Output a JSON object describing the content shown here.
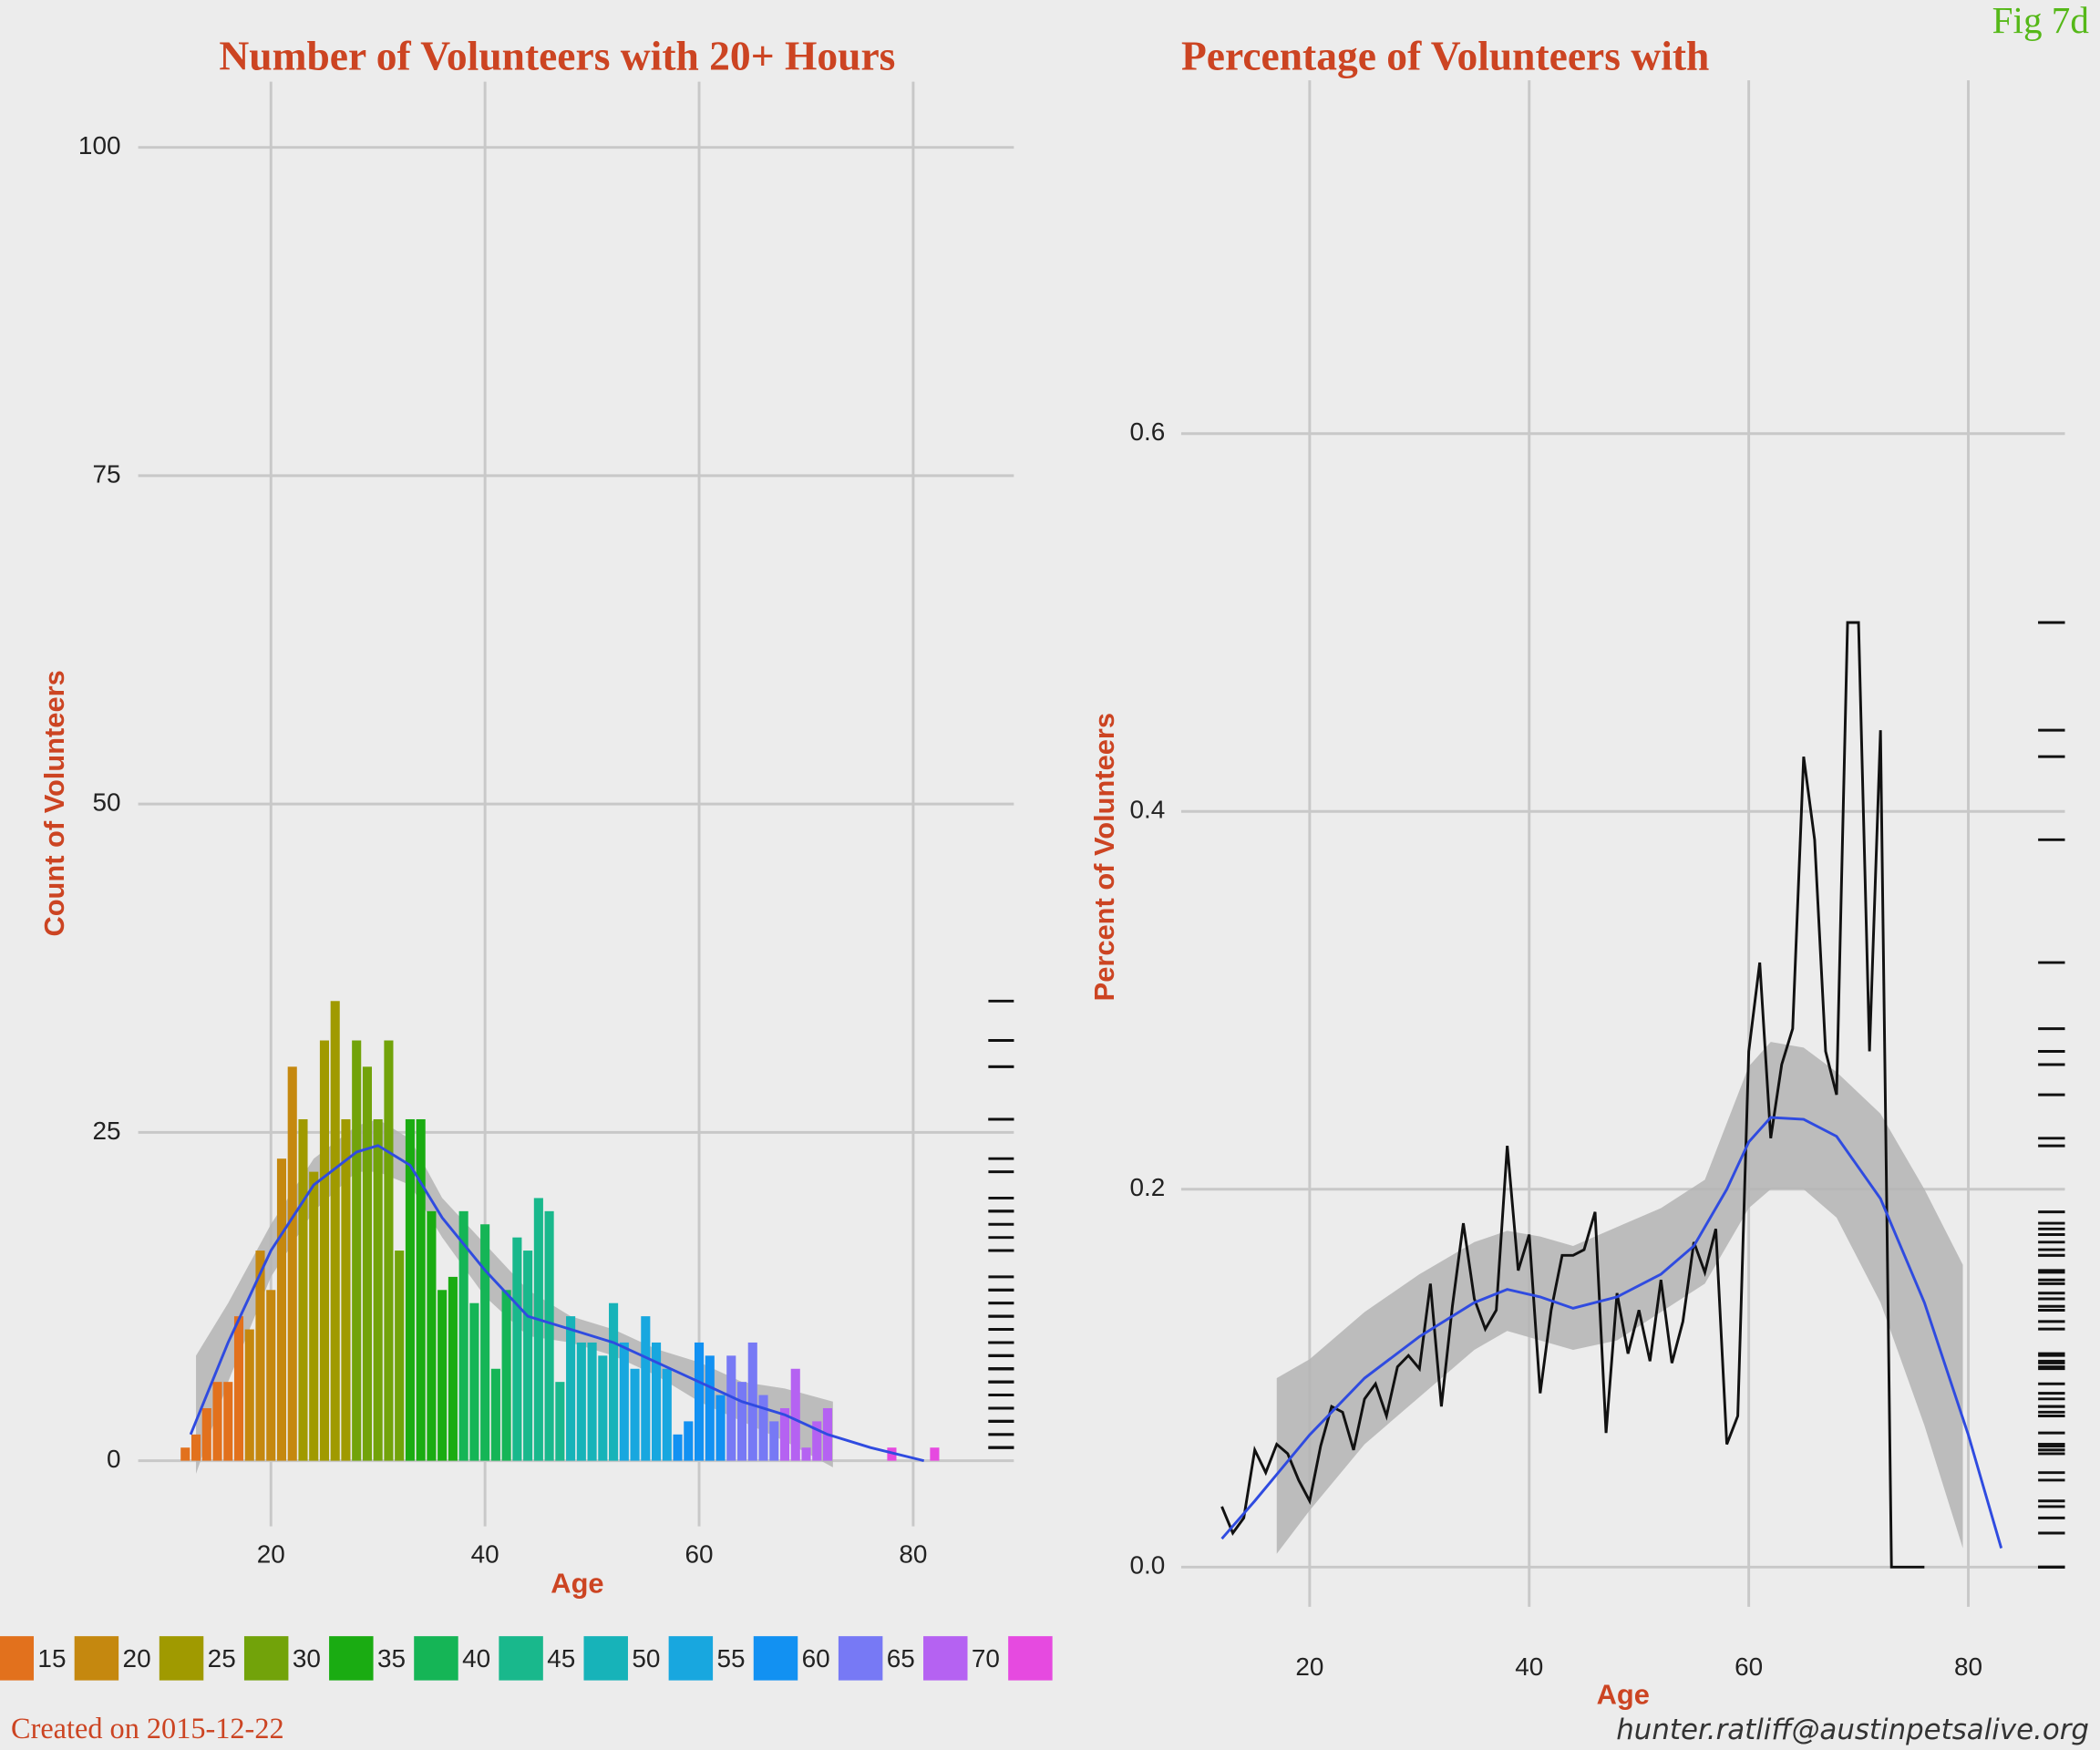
{
  "page": {
    "figure_label": "Fig 7d",
    "footer_left": "Created on 2015-12-22",
    "footer_right": "hunter.ratliff@austinpetsalive.org"
  },
  "chart_data": [
    {
      "type": "bar",
      "title": "Number of Volunteers with 20+ Hours",
      "x_label": "Age",
      "y_label": "Count of Volunteers",
      "x": [
        12,
        13,
        14,
        15,
        16,
        17,
        18,
        19,
        20,
        21,
        22,
        23,
        24,
        25,
        26,
        27,
        28,
        29,
        30,
        31,
        32,
        33,
        34,
        35,
        36,
        37,
        38,
        39,
        40,
        41,
        42,
        43,
        44,
        45,
        46,
        47,
        48,
        49,
        50,
        51,
        52,
        53,
        54,
        55,
        56,
        57,
        58,
        59,
        60,
        61,
        62,
        63,
        64,
        65,
        66,
        67,
        68,
        69,
        70,
        71,
        72,
        78,
        82
      ],
      "values": [
        1,
        2,
        4,
        6,
        6,
        11,
        10,
        16,
        13,
        23,
        30,
        26,
        22,
        32,
        35,
        26,
        32,
        30,
        26,
        32,
        16,
        26,
        26,
        19,
        13,
        14,
        19,
        12,
        18,
        7,
        13,
        17,
        16,
        20,
        19,
        6,
        11,
        9,
        9,
        8,
        12,
        9,
        7,
        11,
        9,
        7,
        2,
        3,
        9,
        8,
        5,
        8,
        6,
        9,
        5,
        3,
        4,
        7,
        1,
        3,
        4,
        1,
        1
      ],
      "xlim": [
        7.6,
        89.4
      ],
      "ylim": [
        -5,
        105
      ],
      "xticks": [
        20,
        40,
        60,
        80
      ],
      "yticks": [
        0,
        25,
        50,
        75,
        100
      ],
      "grid": true,
      "rug": true,
      "smooth": {
        "color": "#2f4be0",
        "x": [
          12.5,
          16,
          20,
          24,
          28,
          30,
          33,
          36,
          40,
          44,
          48,
          52,
          56,
          60,
          64,
          68,
          72,
          76,
          81
        ],
        "values": [
          2,
          9,
          16,
          21,
          23.5,
          24,
          22.5,
          18.5,
          14.5,
          11,
          10,
          9,
          7.5,
          6,
          4.5,
          3.5,
          2,
          1,
          0
        ]
      },
      "ribbon": {
        "color": "#b4b4b4",
        "x": [
          13,
          16,
          20,
          24,
          28,
          30,
          33,
          36,
          40,
          44,
          48,
          52,
          56,
          60,
          64,
          68,
          72.5
        ],
        "lower": [
          -1,
          6,
          14,
          19,
          22,
          22,
          21,
          17,
          12.5,
          9.5,
          9,
          8,
          6.5,
          4.5,
          3,
          1.5,
          -0.5
        ],
        "upper": [
          8,
          12,
          18,
          23,
          25.5,
          26,
          24.5,
          20,
          16.5,
          13,
          11,
          10,
          8.5,
          7.5,
          6,
          5.5,
          4.5
        ]
      },
      "legend": {
        "labels": [
          15,
          20,
          25,
          30,
          35,
          40,
          45,
          50,
          55,
          60,
          65,
          70,
          null
        ],
        "colors": [
          "#e2711d",
          "#c5880f",
          "#a09a00",
          "#72a30a",
          "#1aac12",
          "#15b556",
          "#19b88c",
          "#17b3b9",
          "#18a7df",
          "#1291f2",
          "#7779f5",
          "#b562f2",
          "#e64ae0"
        ]
      }
    },
    {
      "type": "line",
      "title": "Percentage of Volunteers with",
      "x_label": "Age",
      "y_label": "Percent of Volunteers",
      "color": "#111111",
      "x": [
        12,
        13,
        14,
        15,
        16,
        17,
        18,
        19,
        20,
        21,
        22,
        23,
        24,
        25,
        26,
        27,
        28,
        29,
        30,
        31,
        32,
        33,
        34,
        35,
        36,
        37,
        38,
        39,
        40,
        41,
        42,
        43,
        44,
        45,
        46,
        47,
        48,
        49,
        50,
        51,
        52,
        53,
        54,
        55,
        56,
        57,
        58,
        59,
        60,
        61,
        62,
        63,
        64,
        65,
        66,
        67,
        68,
        69,
        70,
        71,
        72,
        73,
        74,
        75,
        76
      ],
      "values": [
        0.032,
        0.018,
        0.026,
        0.062,
        0.05,
        0.065,
        0.06,
        0.046,
        0.035,
        0.064,
        0.085,
        0.082,
        0.062,
        0.089,
        0.097,
        0.08,
        0.106,
        0.112,
        0.105,
        0.15,
        0.085,
        0.138,
        0.182,
        0.142,
        0.126,
        0.136,
        0.223,
        0.157,
        0.176,
        0.092,
        0.136,
        0.165,
        0.165,
        0.168,
        0.188,
        0.071,
        0.145,
        0.113,
        0.136,
        0.109,
        0.152,
        0.108,
        0.13,
        0.172,
        0.156,
        0.179,
        0.065,
        0.08,
        0.273,
        0.32,
        0.227,
        0.266,
        0.285,
        0.429,
        0.385,
        0.273,
        0.25,
        0.5,
        0.5,
        0.273,
        0.443,
        0,
        0,
        0,
        0
      ],
      "xlim": [
        8.3,
        88.8
      ],
      "ylim": [
        -0.021,
        0.787
      ],
      "xticks": [
        20,
        40,
        60,
        80
      ],
      "yticks": [
        {
          "value": 0,
          "label": "0.0"
        },
        0.2,
        0.4,
        0.6
      ],
      "grid": true,
      "rug": true,
      "smooth": {
        "color": "#2f4be0",
        "x": [
          12,
          15,
          20,
          25,
          30,
          35,
          38,
          41,
          44,
          48,
          52,
          55,
          58,
          60,
          62,
          65,
          68,
          72,
          76,
          80,
          83
        ],
        "values": [
          0.015,
          0.035,
          0.07,
          0.1,
          0.122,
          0.14,
          0.147,
          0.143,
          0.137,
          0.143,
          0.155,
          0.17,
          0.2,
          0.225,
          0.238,
          0.237,
          0.228,
          0.195,
          0.14,
          0.07,
          0.01
        ]
      },
      "ribbon": {
        "color": "#b4b4b4",
        "x": [
          17,
          20,
          25,
          30,
          35,
          38,
          41,
          44,
          48,
          52,
          56,
          60,
          62,
          65,
          68,
          72,
          76,
          79.5
        ],
        "lower": [
          0.007,
          0.03,
          0.065,
          0.09,
          0.115,
          0.125,
          0.12,
          0.115,
          0.12,
          0.135,
          0.15,
          0.19,
          0.2,
          0.2,
          0.185,
          0.14,
          0.075,
          0.01
        ],
        "upper": [
          0.1,
          0.11,
          0.135,
          0.155,
          0.172,
          0.178,
          0.175,
          0.17,
          0.18,
          0.19,
          0.205,
          0.265,
          0.278,
          0.275,
          0.262,
          0.24,
          0.2,
          0.16
        ]
      }
    }
  ]
}
